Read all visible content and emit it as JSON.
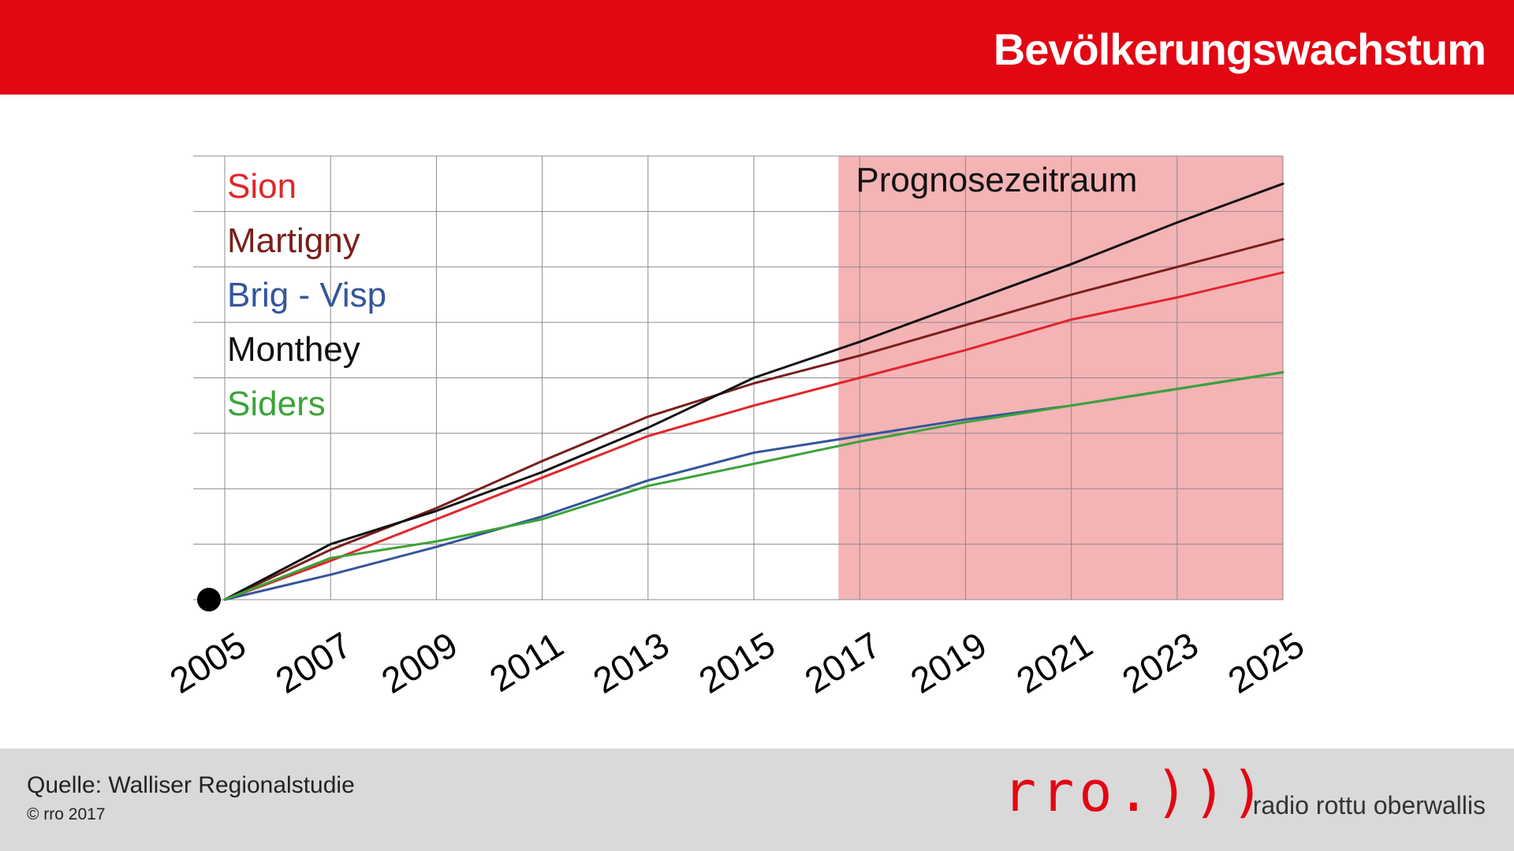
{
  "header": {
    "title": "Bevölkerungswachstum"
  },
  "colors": {
    "header_bg": "#e30613",
    "footer_bg": "#d9d9d9",
    "forecast_fill": "#f4b3b5",
    "brand_red": "#e30613"
  },
  "chart_data": {
    "type": "line",
    "title": "Bevölkerungswachstum",
    "xlabel": "",
    "ylabel": "",
    "x_ticks": [
      "2005",
      "2007",
      "2009",
      "2011",
      "2013",
      "2015",
      "2017",
      "2019",
      "2021",
      "2023",
      "2025"
    ],
    "xlim": [
      2005,
      2025
    ],
    "ylim": [
      0,
      8
    ],
    "y_tick_labels_shown": false,
    "grid": true,
    "legend_placement": "top-left",
    "forecast_region": {
      "label": "Prognosezeitraum",
      "x_start": 2016.6,
      "x_end": 2025
    },
    "origin_marker": {
      "x": 2005,
      "y": 0
    },
    "series": [
      {
        "name": "Sion",
        "color": "#e0262b",
        "x": [
          2005,
          2007,
          2009,
          2011,
          2013,
          2015,
          2017,
          2019,
          2021,
          2023,
          2025
        ],
        "y": [
          0,
          0.7,
          1.45,
          2.2,
          2.95,
          3.5,
          4.0,
          4.5,
          5.05,
          5.45,
          5.9
        ]
      },
      {
        "name": "Martigny",
        "color": "#7a1f1c",
        "x": [
          2005,
          2007,
          2009,
          2011,
          2013,
          2015,
          2017,
          2019,
          2021,
          2023,
          2025
        ],
        "y": [
          0,
          0.9,
          1.65,
          2.5,
          3.3,
          3.9,
          4.4,
          4.95,
          5.5,
          6.0,
          6.5
        ]
      },
      {
        "name": "Brig - Visp",
        "color": "#34569a",
        "x": [
          2005,
          2007,
          2009,
          2011,
          2013,
          2015,
          2017,
          2019,
          2021,
          2023,
          2025
        ],
        "y": [
          0,
          0.45,
          0.95,
          1.5,
          2.15,
          2.65,
          2.95,
          3.25,
          3.5,
          3.8,
          4.1
        ]
      },
      {
        "name": "Monthey",
        "color": "#111111",
        "x": [
          2005,
          2007,
          2009,
          2011,
          2013,
          2015,
          2017,
          2019,
          2021,
          2023,
          2025
        ],
        "y": [
          0,
          1.0,
          1.6,
          2.3,
          3.1,
          4.0,
          4.65,
          5.35,
          6.05,
          6.8,
          7.5
        ]
      },
      {
        "name": "Siders",
        "color": "#3ba339",
        "x": [
          2005,
          2007,
          2009,
          2011,
          2013,
          2015,
          2017,
          2019,
          2021,
          2023,
          2025
        ],
        "y": [
          0,
          0.75,
          1.05,
          1.45,
          2.05,
          2.45,
          2.85,
          3.2,
          3.5,
          3.8,
          4.1
        ]
      }
    ]
  },
  "footer": {
    "source": "Quelle: Walliser Regionalstudie",
    "copyright": "© rro 2017",
    "brand_logo": "rro.)))",
    "brand_text": "radio rottu oberwallis"
  }
}
